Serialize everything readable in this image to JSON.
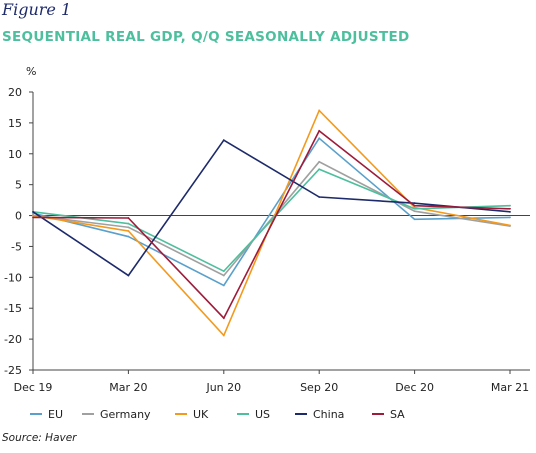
{
  "figure_label": "Figure 1",
  "source": "Source: Haver",
  "chart_data": {
    "type": "line",
    "title": "SEQUENTIAL REAL GDP, Q/Q SEASONALLY ADJUSTED",
    "ylabel": "%",
    "xlabel": "",
    "categories": [
      "Dec 19",
      "Mar 20",
      "Jun 20",
      "Sep 20",
      "Dec 20",
      "Mar 21"
    ],
    "ylim": [
      -25,
      20
    ],
    "yticks": [
      20,
      15,
      10,
      5,
      0,
      -5,
      -10,
      -15,
      -20,
      -25
    ],
    "ytick_labels": [
      "20",
      "15",
      "10",
      "5",
      "0",
      "-5",
      "-10",
      "-15",
      "-20",
      "-25"
    ],
    "grid": false,
    "legend_position": "bottom",
    "series": [
      {
        "name": "EU",
        "color": "#5aa0cc",
        "values": [
          0.4,
          -3.4,
          -11.3,
          12.5,
          -0.6,
          -0.3
        ]
      },
      {
        "name": "Germany",
        "color": "#a0a0a0",
        "values": [
          0.0,
          -1.9,
          -9.7,
          8.7,
          0.7,
          -1.7
        ]
      },
      {
        "name": "UK",
        "color": "#f39a1e",
        "values": [
          0.0,
          -2.5,
          -19.4,
          17.0,
          1.3,
          -1.6
        ]
      },
      {
        "name": "US",
        "color": "#4dbf9c",
        "values": [
          0.6,
          -1.3,
          -9.0,
          7.5,
          1.1,
          1.6
        ]
      },
      {
        "name": "China",
        "color": "#1d2a6b",
        "values": [
          0.6,
          -9.7,
          12.2,
          3.0,
          2.0,
          0.6
        ]
      },
      {
        "name": "SA",
        "color": "#9e1b3a",
        "values": [
          -0.3,
          -0.4,
          -16.6,
          13.7,
          1.6,
          1.1
        ]
      }
    ]
  }
}
